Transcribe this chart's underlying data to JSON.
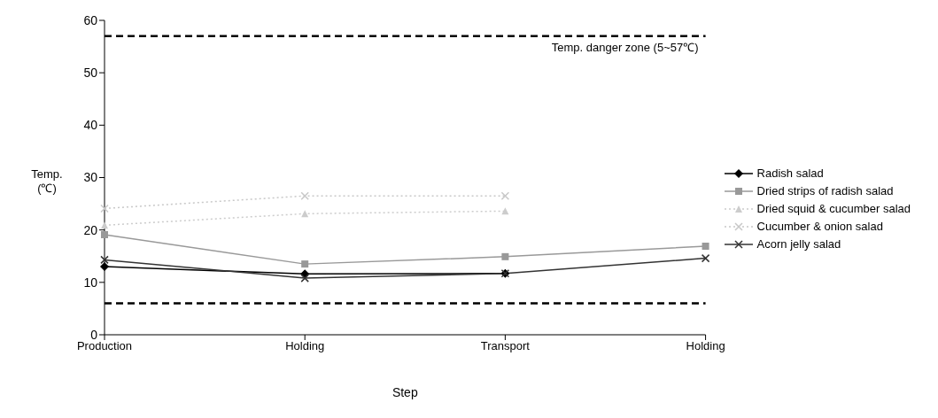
{
  "chart_data": {
    "type": "line",
    "xlabel": "Step",
    "ylabel": "Temp.\n(℃)",
    "categories": [
      "Production",
      "Holding",
      "Transport",
      "Holding"
    ],
    "series": [
      {
        "name": "Radish salad",
        "color": "#000000",
        "marker": "diamond",
        "values": [
          13.0,
          11.6,
          11.7,
          null
        ]
      },
      {
        "name": "Dried strips of radish salad",
        "color": "#999999",
        "marker": "square",
        "values": [
          19.1,
          13.5,
          14.9,
          16.9
        ]
      },
      {
        "name": "Dried squid & cucumber salad",
        "color": "#cccccc",
        "marker": "triangle",
        "line_style": "dotted",
        "values": [
          20.9,
          23.1,
          23.6,
          null
        ]
      },
      {
        "name": "Cucumber & onion salad",
        "color": "#c8c8c8",
        "marker": "cross",
        "line_style": "dotted",
        "values": [
          24.1,
          26.5,
          26.5,
          null
        ]
      },
      {
        "name": "Acorn jelly salad",
        "color": "#333333",
        "marker": "cross",
        "values": [
          14.3,
          10.8,
          11.7,
          14.6
        ]
      }
    ],
    "ylim": [
      0,
      60
    ],
    "yticks": [
      0,
      10,
      20,
      30,
      40,
      50,
      60
    ],
    "grid": false,
    "legend": "right",
    "line_style": "solid",
    "ref_lines": [
      {
        "axis": "y",
        "value": 57,
        "label": "Temp. danger zone (5~57℃)",
        "color": "#000000",
        "line_style": "dashed"
      },
      {
        "axis": "y",
        "value": 6,
        "color": "#000000",
        "line_style": "dashed"
      }
    ]
  }
}
